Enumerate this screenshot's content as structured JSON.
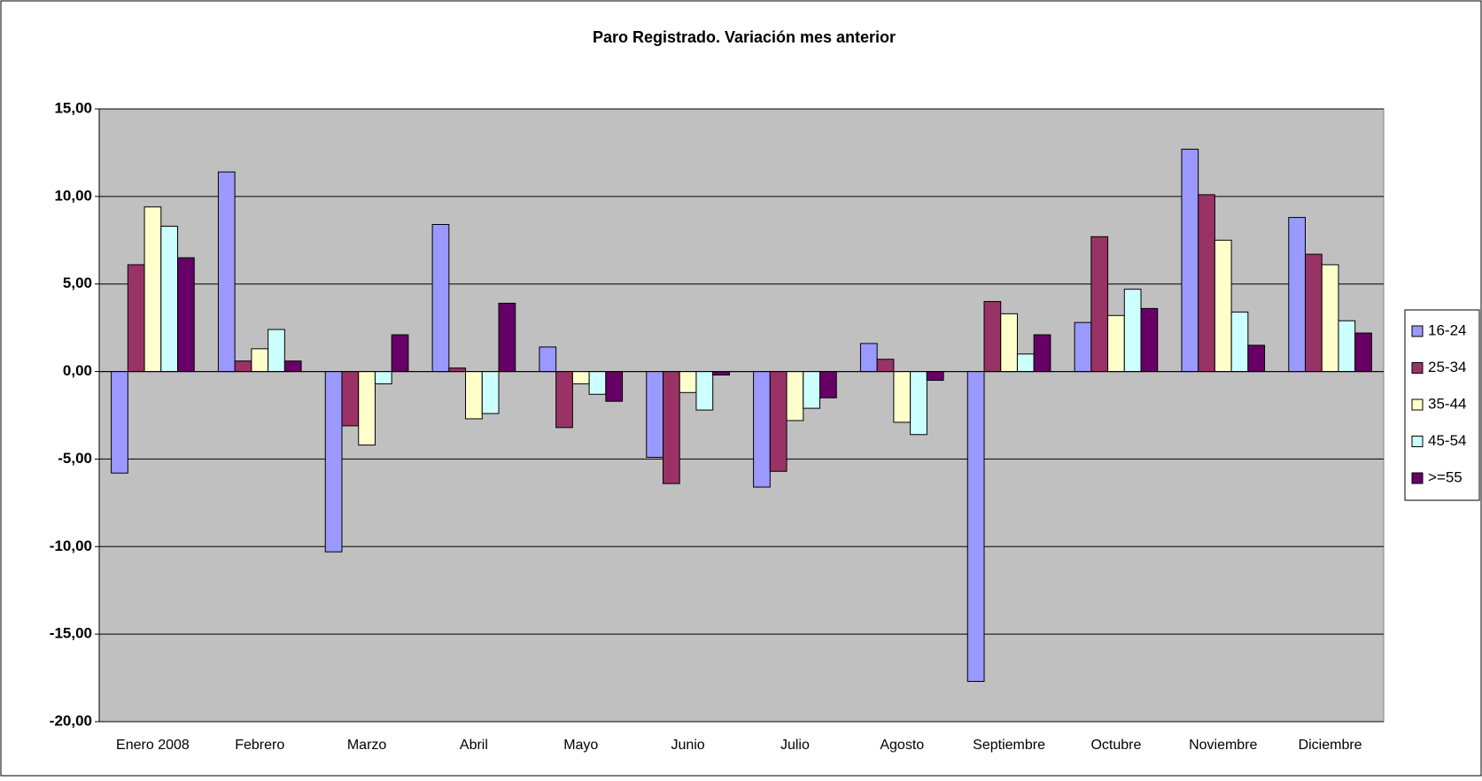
{
  "chart_data": {
    "type": "bar",
    "title": "Paro Registrado. Variación mes anterior",
    "categories": [
      "Enero 2008",
      "Febrero",
      "Marzo",
      "Abril",
      "Mayo",
      "Junio",
      "Julio",
      "Agosto",
      "Septiembre",
      "Octubre",
      "Noviembre",
      "Diciembre"
    ],
    "series": [
      {
        "name": "16-24",
        "color": "#9999ff",
        "values": [
          -5.8,
          11.4,
          -10.3,
          8.4,
          1.4,
          -4.9,
          -6.6,
          1.6,
          -17.7,
          2.8,
          12.7,
          8.8
        ]
      },
      {
        "name": "25-34",
        "color": "#993366",
        "values": [
          6.1,
          0.6,
          -3.1,
          0.2,
          -3.2,
          -6.4,
          -5.7,
          0.7,
          4.0,
          7.7,
          10.1,
          6.7
        ]
      },
      {
        "name": "35-44",
        "color": "#ffffcc",
        "values": [
          9.4,
          1.3,
          -4.2,
          -2.7,
          -0.7,
          -1.2,
          -2.8,
          -2.9,
          3.3,
          3.2,
          7.5,
          6.1
        ]
      },
      {
        "name": "45-54",
        "color": "#ccffff",
        "values": [
          8.3,
          2.4,
          -0.7,
          -2.4,
          -1.3,
          -2.2,
          -2.1,
          -3.6,
          1.0,
          4.7,
          3.4,
          2.9
        ]
      },
      {
        "name": ">=55",
        "color": "#660066",
        "values": [
          6.5,
          0.6,
          2.1,
          3.9,
          -1.7,
          -0.2,
          -1.5,
          -0.5,
          2.1,
          3.6,
          1.5,
          2.2
        ]
      }
    ],
    "ylim": [
      -20,
      15
    ],
    "yticks": [
      {
        "value": -20,
        "label": "-20,00"
      },
      {
        "value": -15,
        "label": "-15,00"
      },
      {
        "value": -10,
        "label": "-10,00"
      },
      {
        "value": -5,
        "label": "-5,00"
      },
      {
        "value": 0,
        "label": "0,00"
      },
      {
        "value": 5,
        "label": "5,00"
      },
      {
        "value": 10,
        "label": "10,00"
      },
      {
        "value": 15,
        "label": "15,00"
      }
    ],
    "grid": true,
    "plot_background": "#c0c0c0",
    "legend": "right"
  }
}
